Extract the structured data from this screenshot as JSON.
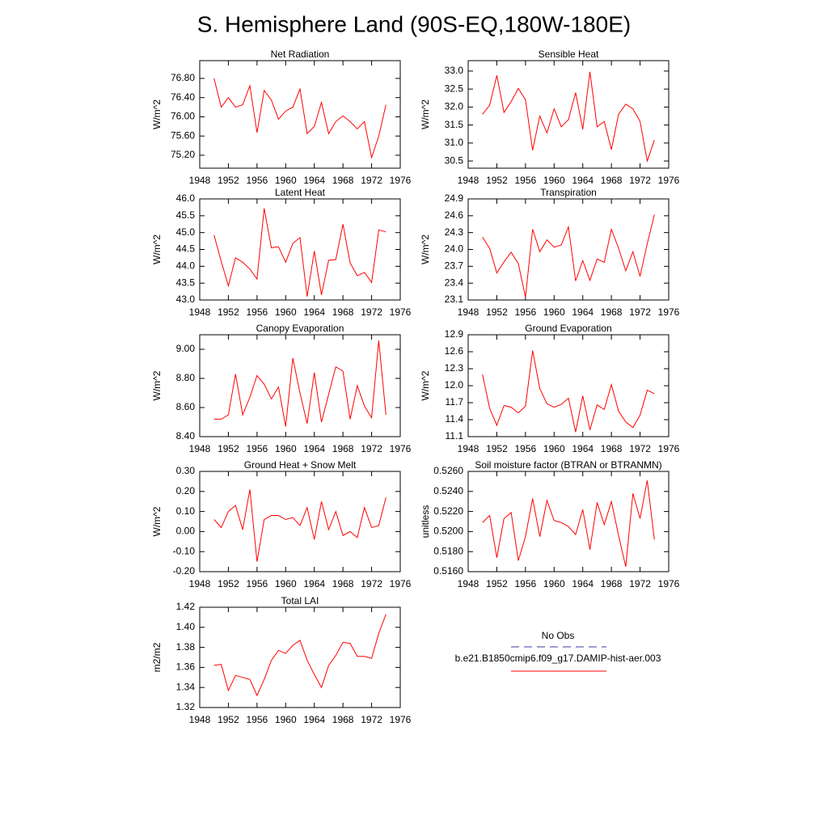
{
  "title": "S. Hemisphere Land (90S-EQ,180W-180E)",
  "legend": [
    {
      "name": "No Obs",
      "color": "#3a3aa8",
      "dashed": true
    },
    {
      "name": "b.e21.B1850cmip6.f09_g17.DAMIP-hist-aer.003",
      "color": "#ff0000",
      "dashed": false
    }
  ],
  "chart_data": [
    {
      "type": "line",
      "title": "Net Radiation",
      "ylabel": "W/m^2",
      "color": "#ff0000",
      "x": [
        1950,
        1951,
        1952,
        1953,
        1954,
        1955,
        1956,
        1957,
        1958,
        1959,
        1960,
        1961,
        1962,
        1963,
        1964,
        1965,
        1966,
        1967,
        1968,
        1969,
        1970,
        1971,
        1972,
        1973,
        1974
      ],
      "values": [
        76.8,
        76.2,
        76.4,
        76.2,
        76.25,
        76.65,
        75.67,
        76.55,
        76.35,
        75.95,
        76.12,
        76.2,
        76.58,
        75.65,
        75.8,
        76.3,
        75.65,
        75.9,
        76.02,
        75.9,
        75.75,
        75.9,
        75.15,
        75.6,
        76.25
      ],
      "xlim": [
        1948,
        1976
      ],
      "xticks": [
        1948,
        1952,
        1956,
        1960,
        1964,
        1968,
        1972,
        1976
      ],
      "ylim": [
        74.93,
        77.17
      ],
      "yticks": [
        {
          "value": 75.2,
          "label": "75.20"
        },
        {
          "value": 75.6,
          "label": "75.60"
        },
        {
          "value": 76,
          "label": "76.00"
        },
        {
          "value": 76.4,
          "label": "76.40"
        },
        {
          "value": 76.8,
          "label": "76.80"
        }
      ]
    },
    {
      "type": "line",
      "title": "Sensible Heat",
      "ylabel": "W/m^2",
      "color": "#ff0000",
      "x": [
        1950,
        1951,
        1952,
        1953,
        1954,
        1955,
        1956,
        1957,
        1958,
        1959,
        1960,
        1961,
        1962,
        1963,
        1964,
        1965,
        1966,
        1967,
        1968,
        1969,
        1970,
        1971,
        1972,
        1973,
        1974
      ],
      "values": [
        31.8,
        32.05,
        32.88,
        31.85,
        32.15,
        32.52,
        32.2,
        30.8,
        31.75,
        31.28,
        31.95,
        31.45,
        31.65,
        32.4,
        31.38,
        32.98,
        31.45,
        31.6,
        30.82,
        31.8,
        32.08,
        31.95,
        31.6,
        30.5,
        31.08
      ],
      "xlim": [
        1948,
        1976
      ],
      "xticks": [
        1948,
        1952,
        1956,
        1960,
        1964,
        1968,
        1972,
        1976
      ],
      "ylim": [
        30.3,
        33.29
      ],
      "yticks": [
        30.5,
        {
          "value": 31,
          "label": "31.0"
        },
        31.5,
        {
          "value": 32,
          "label": "32.0"
        },
        32.5,
        {
          "value": 33,
          "label": "33.0"
        }
      ]
    },
    {
      "type": "line",
      "title": "Latent Heat",
      "ylabel": "W/m^2",
      "color": "#ff0000",
      "x": [
        1950,
        1951,
        1952,
        1953,
        1954,
        1955,
        1956,
        1957,
        1958,
        1959,
        1960,
        1961,
        1962,
        1963,
        1964,
        1965,
        1966,
        1967,
        1968,
        1969,
        1970,
        1971,
        1972,
        1973,
        1974
      ],
      "values": [
        44.93,
        44.15,
        43.42,
        44.25,
        44.12,
        43.92,
        43.62,
        45.72,
        44.55,
        44.58,
        44.12,
        44.68,
        44.85,
        43.1,
        44.45,
        43.15,
        44.18,
        44.2,
        45.25,
        44.1,
        43.72,
        43.82,
        43.52,
        45.08,
        45.02
      ],
      "xlim": [
        1948,
        1976
      ],
      "xticks": [
        1948,
        1952,
        1956,
        1960,
        1964,
        1968,
        1972,
        1976
      ],
      "ylim": [
        43,
        46
      ],
      "yticks": [
        {
          "value": 43,
          "label": "43.0"
        },
        43.5,
        {
          "value": 44,
          "label": "44.0"
        },
        44.5,
        {
          "value": 45,
          "label": "45.0"
        },
        45.5,
        {
          "value": 46,
          "label": "46.0"
        }
      ]
    },
    {
      "type": "line",
      "title": "Transpiration",
      "ylabel": "W/m^2",
      "color": "#ff0000",
      "x": [
        1950,
        1951,
        1952,
        1953,
        1954,
        1955,
        1956,
        1957,
        1958,
        1959,
        1960,
        1961,
        1962,
        1963,
        1964,
        1965,
        1966,
        1967,
        1968,
        1969,
        1970,
        1971,
        1972,
        1973,
        1974
      ],
      "values": [
        24.22,
        24.02,
        23.58,
        23.78,
        23.95,
        23.75,
        23.15,
        24.36,
        23.96,
        24.17,
        24.04,
        24.08,
        24.4,
        23.44,
        23.8,
        23.45,
        23.83,
        23.77,
        24.36,
        24.02,
        23.62,
        23.96,
        23.52,
        24.1,
        24.62
      ],
      "xlim": [
        1948,
        1976
      ],
      "xticks": [
        1948,
        1952,
        1956,
        1960,
        1964,
        1968,
        1972,
        1976
      ],
      "ylim": [
        23.1,
        24.9
      ],
      "yticks": [
        23.1,
        23.4,
        23.7,
        {
          "value": 24,
          "label": "24.0"
        },
        24.3,
        24.6,
        24.9
      ]
    },
    {
      "type": "line",
      "title": "Canopy Evaporation",
      "ylabel": "W/m^2",
      "color": "#ff0000",
      "x": [
        1950,
        1951,
        1952,
        1953,
        1954,
        1955,
        1956,
        1957,
        1958,
        1959,
        1960,
        1961,
        1962,
        1963,
        1964,
        1965,
        1966,
        1967,
        1968,
        1969,
        1970,
        1971,
        1972,
        1973,
        1974
      ],
      "values": [
        8.52,
        8.52,
        8.55,
        8.83,
        8.55,
        8.67,
        8.82,
        8.76,
        8.66,
        8.74,
        8.47,
        8.94,
        8.7,
        8.49,
        8.84,
        8.5,
        8.69,
        8.88,
        8.85,
        8.52,
        8.75,
        8.61,
        8.53,
        9.06,
        8.55
      ],
      "xlim": [
        1948,
        1976
      ],
      "xticks": [
        1948,
        1952,
        1956,
        1960,
        1964,
        1968,
        1972,
        1976
      ],
      "ylim": [
        8.4,
        9.1
      ],
      "yticks": [
        {
          "value": 8.4,
          "label": "8.40"
        },
        {
          "value": 8.6,
          "label": "8.60"
        },
        {
          "value": 8.8,
          "label": "8.80"
        },
        {
          "value": 9,
          "label": "9.00"
        }
      ]
    },
    {
      "type": "line",
      "title": "Ground Evaporation",
      "ylabel": "W/m^2",
      "color": "#ff0000",
      "x": [
        1950,
        1951,
        1952,
        1953,
        1954,
        1955,
        1956,
        1957,
        1958,
        1959,
        1960,
        1961,
        1962,
        1963,
        1964,
        1965,
        1966,
        1967,
        1968,
        1969,
        1970,
        1971,
        1972,
        1973,
        1974
      ],
      "values": [
        12.2,
        11.6,
        11.3,
        11.65,
        11.62,
        11.52,
        11.64,
        12.62,
        11.95,
        11.68,
        11.62,
        11.67,
        11.78,
        11.18,
        11.82,
        11.22,
        11.66,
        11.58,
        12.02,
        11.55,
        11.36,
        11.26,
        11.48,
        11.92,
        11.86
      ],
      "xlim": [
        1948,
        1976
      ],
      "xticks": [
        1948,
        1952,
        1956,
        1960,
        1964,
        1968,
        1972,
        1976
      ],
      "ylim": [
        11.1,
        12.9
      ],
      "yticks": [
        11.1,
        11.4,
        11.7,
        {
          "value": 12,
          "label": "12.0"
        },
        12.3,
        12.6,
        12.9
      ]
    },
    {
      "type": "line",
      "title": "Ground Heat + Snow Melt",
      "ylabel": "W/m^2",
      "color": "#ff0000",
      "x": [
        1950,
        1951,
        1952,
        1953,
        1954,
        1955,
        1956,
        1957,
        1958,
        1959,
        1960,
        1961,
        1962,
        1963,
        1964,
        1965,
        1966,
        1967,
        1968,
        1969,
        1970,
        1971,
        1972,
        1973,
        1974
      ],
      "values": [
        0.06,
        0.02,
        0.1,
        0.13,
        0.01,
        0.21,
        -0.15,
        0.06,
        0.08,
        0.08,
        0.06,
        0.07,
        0.03,
        0.12,
        -0.04,
        0.15,
        0.01,
        0.1,
        -0.02,
        0,
        -0.03,
        0.12,
        0.02,
        0.03,
        0.17
      ],
      "xlim": [
        1948,
        1976
      ],
      "xticks": [
        1948,
        1952,
        1956,
        1960,
        1964,
        1968,
        1972,
        1976
      ],
      "ylim": [
        -0.2,
        0.3
      ],
      "yticks": [
        {
          "value": -0.2,
          "label": "-0.20"
        },
        {
          "value": -0.1,
          "label": "-0.10"
        },
        {
          "value": 0,
          "label": "0.00"
        },
        {
          "value": 0.1,
          "label": "0.10"
        },
        {
          "value": 0.2,
          "label": "0.20"
        },
        {
          "value": 0.3,
          "label": "0.30"
        }
      ]
    },
    {
      "type": "line",
      "title": "Soil moisture factor (BTRAN or BTRANMN)",
      "ylabel": "unitless",
      "color": "#ff0000",
      "x": [
        1950,
        1951,
        1952,
        1953,
        1954,
        1955,
        1956,
        1957,
        1958,
        1959,
        1960,
        1961,
        1962,
        1963,
        1964,
        1965,
        1966,
        1967,
        1968,
        1969,
        1970,
        1971,
        1972,
        1973,
        1974
      ],
      "values": [
        0.5209,
        0.5216,
        0.5174,
        0.5213,
        0.5219,
        0.5171,
        0.5195,
        0.5233,
        0.5195,
        0.5231,
        0.5211,
        0.5209,
        0.5205,
        0.5197,
        0.5222,
        0.5182,
        0.5229,
        0.5207,
        0.523,
        0.5196,
        0.5165,
        0.5238,
        0.5213,
        0.5251,
        0.5192
      ],
      "xlim": [
        1948,
        1976
      ],
      "xticks": [
        1948,
        1952,
        1956,
        1960,
        1964,
        1968,
        1972,
        1976
      ],
      "ylim": [
        0.516,
        0.526
      ],
      "yticks": [
        {
          "value": 0.516,
          "label": "0.5160"
        },
        {
          "value": 0.518,
          "label": "0.5180"
        },
        {
          "value": 0.52,
          "label": "0.5200"
        },
        {
          "value": 0.522,
          "label": "0.5220"
        },
        {
          "value": 0.524,
          "label": "0.5240"
        },
        {
          "value": 0.526,
          "label": "0.5260"
        }
      ]
    },
    {
      "type": "line",
      "title": "Total LAI",
      "ylabel": "m2/m2",
      "color": "#ff0000",
      "x": [
        1950,
        1951,
        1952,
        1953,
        1954,
        1955,
        1956,
        1957,
        1958,
        1959,
        1960,
        1961,
        1962,
        1963,
        1964,
        1965,
        1966,
        1967,
        1968,
        1969,
        1970,
        1971,
        1972,
        1973,
        1974
      ],
      "values": [
        1.362,
        1.363,
        1.337,
        1.352,
        1.35,
        1.348,
        1.332,
        1.348,
        1.367,
        1.377,
        1.374,
        1.382,
        1.387,
        1.367,
        1.353,
        1.34,
        1.362,
        1.372,
        1.385,
        1.384,
        1.371,
        1.371,
        1.369,
        1.394,
        1.413
      ],
      "xlim": [
        1948,
        1976
      ],
      "xticks": [
        1948,
        1952,
        1956,
        1960,
        1964,
        1968,
        1972,
        1976
      ],
      "ylim": [
        1.32,
        1.42
      ],
      "yticks": [
        1.32,
        1.34,
        1.36,
        1.38,
        {
          "value": 1.4,
          "label": "1.40"
        },
        1.42
      ]
    }
  ]
}
